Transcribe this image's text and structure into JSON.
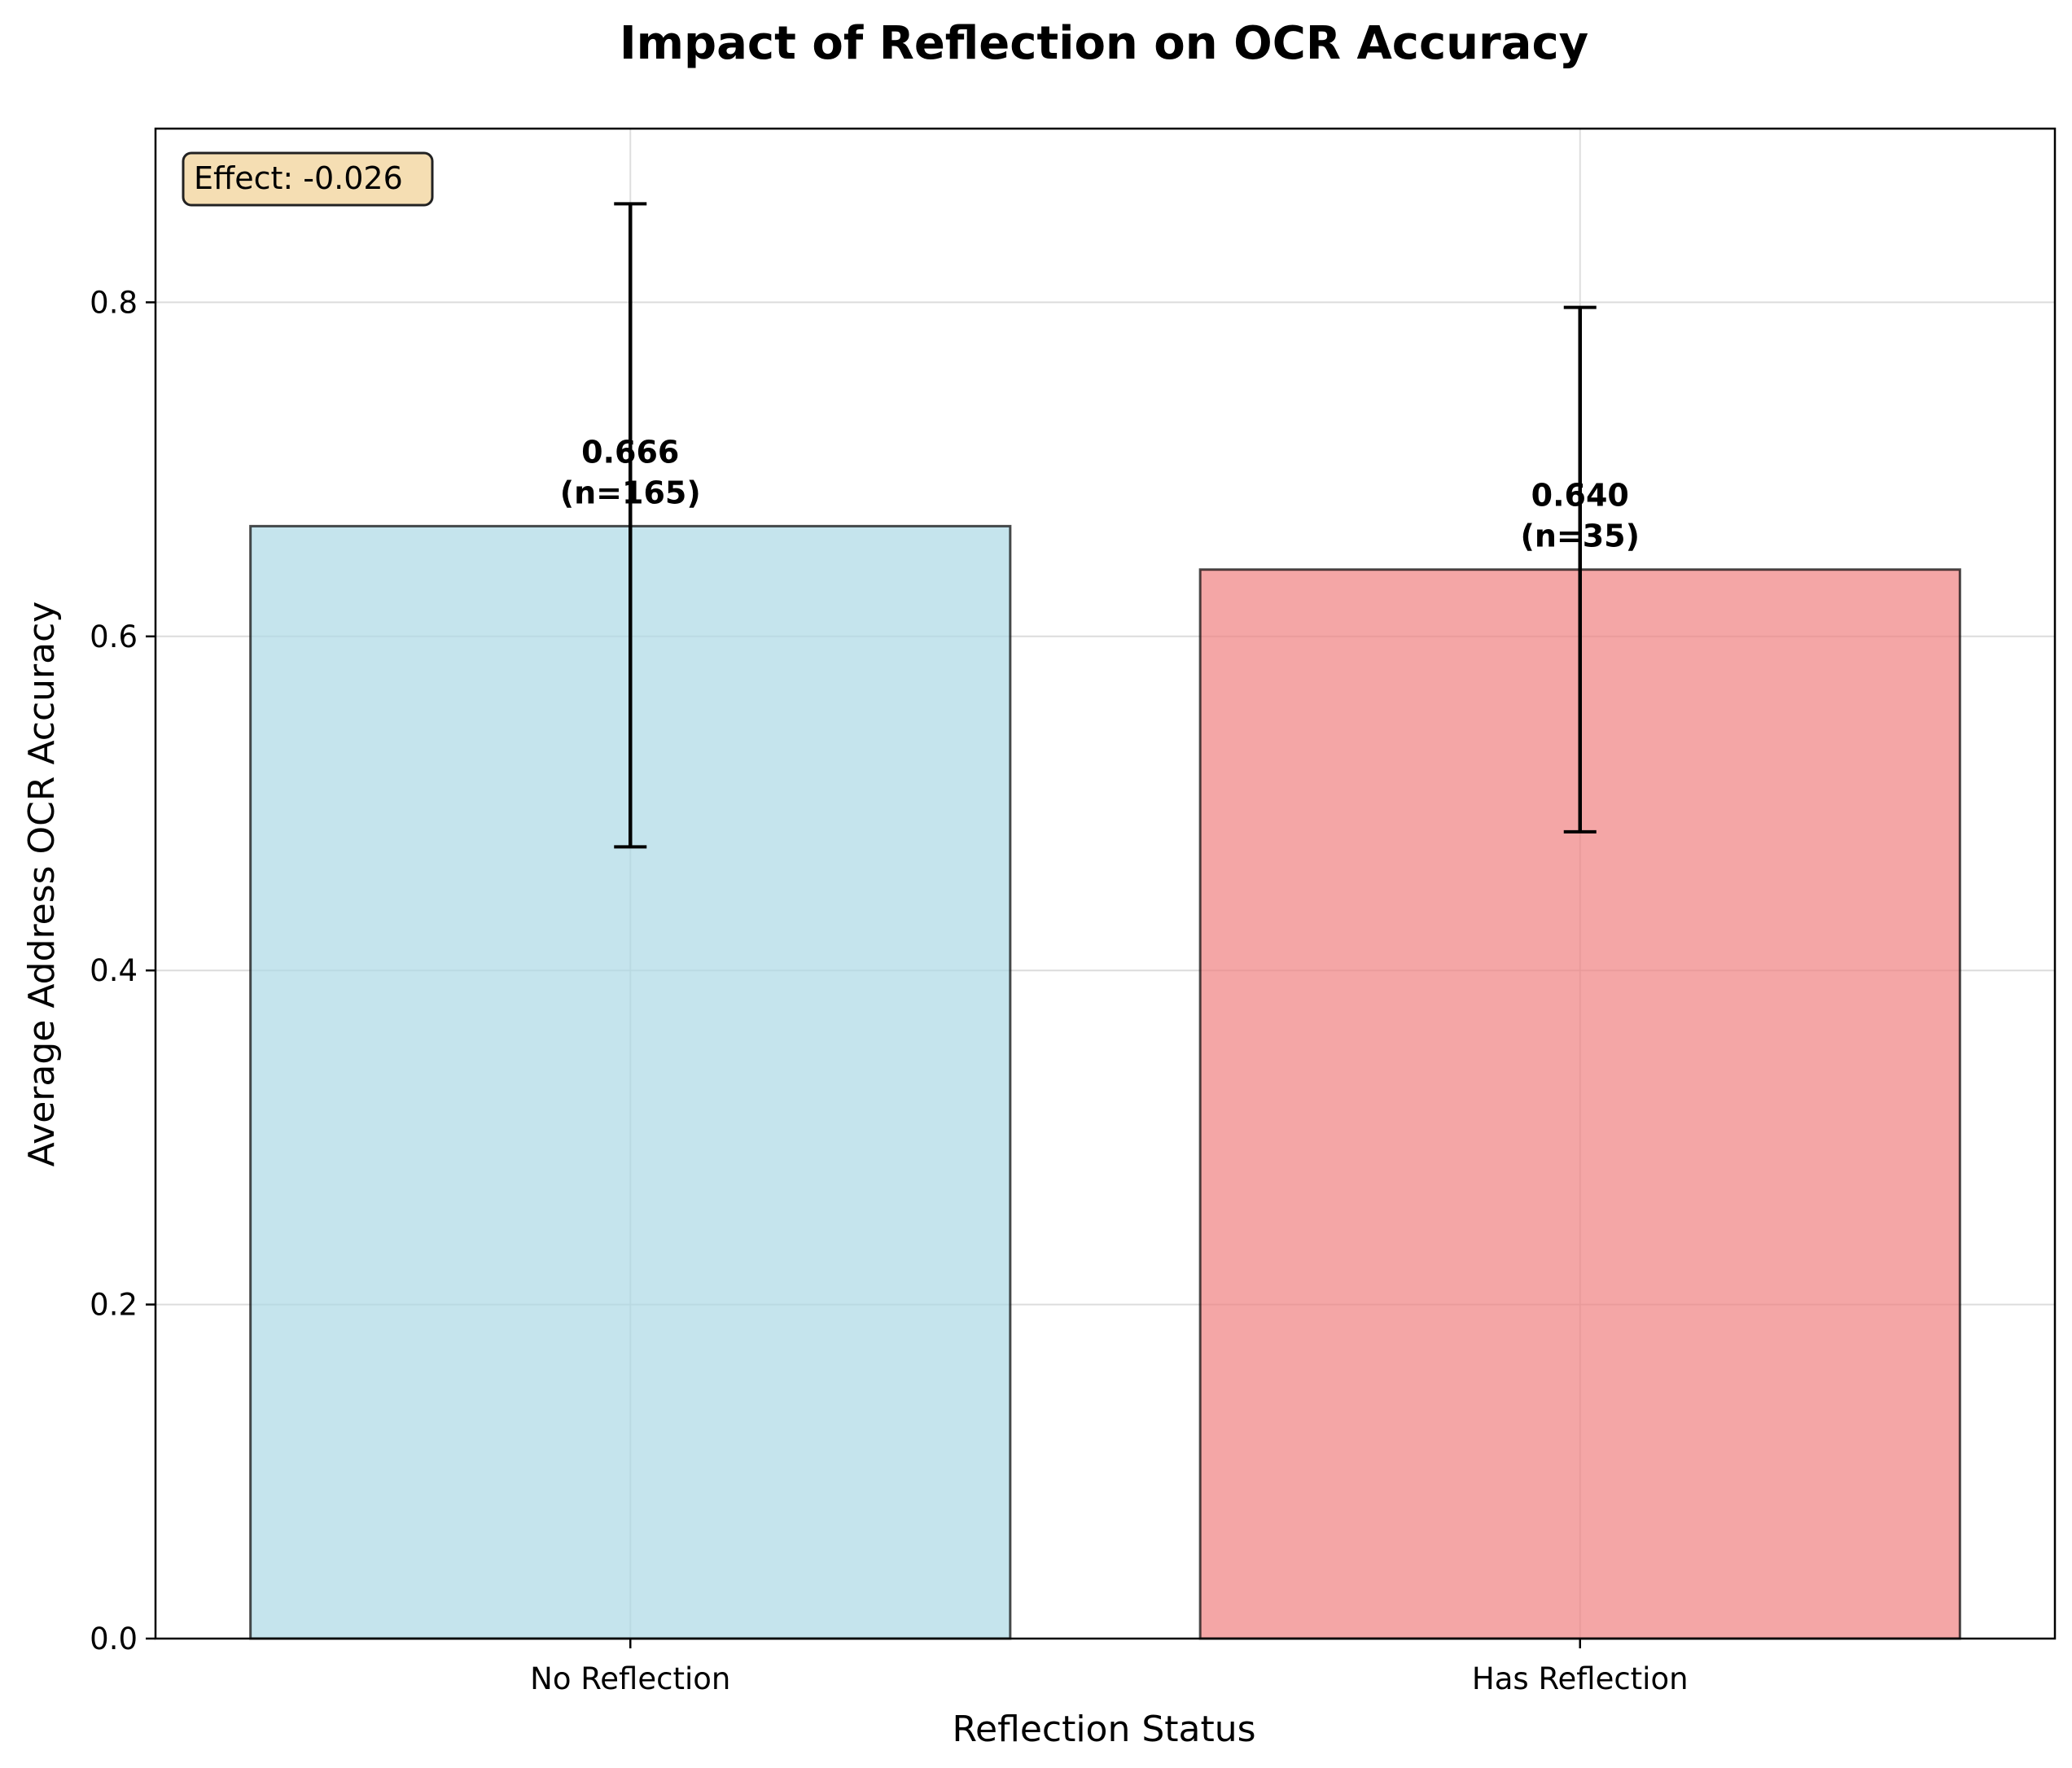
{
  "chart_data": {
    "type": "bar",
    "title": "Impact of Reflection on OCR Accuracy",
    "xlabel": "Reflection Status",
    "ylabel": "Average Address OCR Accuracy",
    "categories": [
      "No Reflection",
      "Has Reflection"
    ],
    "values": [
      0.666,
      0.64
    ],
    "error_low": [
      0.474,
      0.483
    ],
    "error_high": [
      0.859,
      0.797
    ],
    "value_labels": [
      "0.666",
      "0.640"
    ],
    "count_labels": [
      "(n=165)",
      "(n=35)"
    ],
    "colors": [
      "#add8e6",
      "#f08080"
    ],
    "ylim": [
      0,
      0.904
    ],
    "yticks": [
      0.0,
      0.2,
      0.4,
      0.6,
      0.8
    ],
    "ytick_labels": [
      "0.0",
      "0.2",
      "0.4",
      "0.6",
      "0.8"
    ],
    "grid": true,
    "annotation": "Effect: -0.026",
    "annotation_bg": "#f5deb3"
  }
}
